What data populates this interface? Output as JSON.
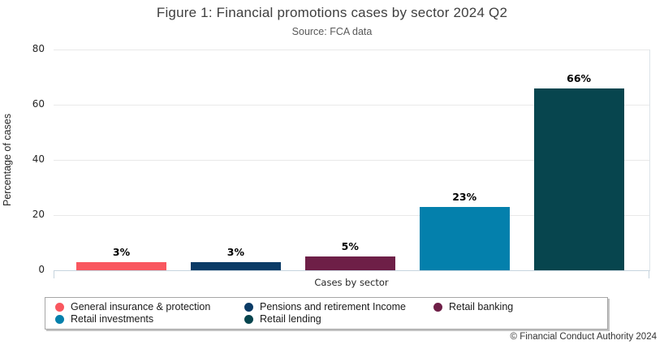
{
  "header": {
    "title": "Figure 1: Financial promotions cases by sector 2024 Q2",
    "subtitle": "Source: FCA data"
  },
  "footer": {
    "copyright": "© Financial Conduct Authority 2024"
  },
  "chart_data": {
    "type": "bar",
    "title": "Figure 1: Financial promotions cases by sector 2024 Q2",
    "subtitle": "Source: FCA data",
    "xlabel": "Cases by sector",
    "ylabel": "Percentage of cases",
    "ylim": [
      0,
      80
    ],
    "yticks": [
      0,
      20,
      40,
      60,
      80
    ],
    "grid": "horizontal",
    "legend_position": "bottom",
    "categories": [
      "General insurance & protection",
      "Pensions and retirement Income",
      "Retail banking",
      "Retail investments",
      "Retail lending"
    ],
    "values": [
      3,
      3,
      5,
      23,
      66
    ],
    "value_labels": [
      "3%",
      "3%",
      "5%",
      "23%",
      "66%"
    ],
    "colors": [
      "#f9575f",
      "#0b3b66",
      "#6e1f47",
      "#0480ac",
      "#07454e"
    ],
    "gridline_color": "#e9e9e9",
    "axis_line_color": "#c6d4de"
  }
}
